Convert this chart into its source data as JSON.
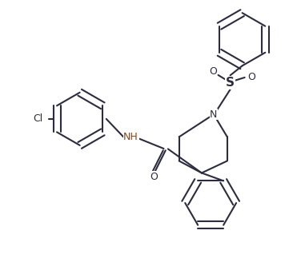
{
  "bg_color": "#ffffff",
  "line_color": "#2c2c3e",
  "nh_color": "#8B4513",
  "n_color": "#2c2c3e",
  "bond_width": 1.5,
  "figsize": [
    3.76,
    3.33
  ],
  "dpi": 100,
  "xlim": [
    0,
    10
  ],
  "ylim": [
    0,
    8.86
  ]
}
